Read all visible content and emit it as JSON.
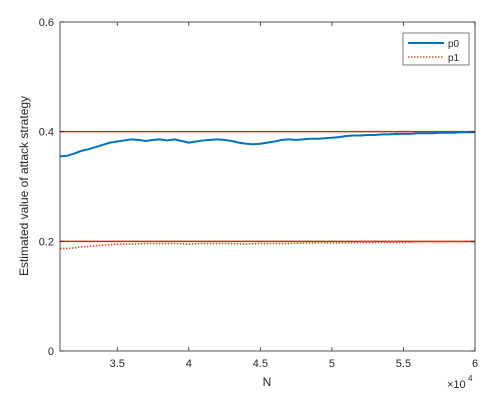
{
  "chart_data": {
    "type": "line",
    "title": "",
    "xlabel": "N",
    "ylabel": "Estimated value of attack strategy",
    "x_exponent_label": "×10",
    "x_exponent_power": "4",
    "xlim": [
      31000,
      60000
    ],
    "ylim": [
      0,
      0.6
    ],
    "x_ticks": [
      35000,
      40000,
      45000,
      50000,
      55000,
      60000
    ],
    "x_tick_labels": [
      "3.5",
      "4",
      "4.5",
      "5",
      "5.5",
      "6"
    ],
    "y_ticks": [
      0,
      0.2,
      0.4,
      0.6
    ],
    "y_tick_labels": [
      "0",
      "0.2",
      "0.4",
      "0.6"
    ],
    "grid": false,
    "legend_position": "top-right",
    "series": [
      {
        "name": "p0",
        "color": "#0072BD",
        "style": "solid",
        "x": [
          31000,
          31500,
          32000,
          32500,
          33000,
          33500,
          34000,
          34500,
          35000,
          35500,
          36000,
          36500,
          37000,
          37500,
          38000,
          38500,
          39000,
          39500,
          40000,
          40500,
          41000,
          41500,
          42000,
          42500,
          43000,
          43500,
          44000,
          44500,
          45000,
          45500,
          46000,
          46500,
          47000,
          47500,
          48000,
          48500,
          49000,
          49500,
          50000,
          50500,
          51000,
          51500,
          52000,
          52500,
          53000,
          53500,
          54000,
          54500,
          55000,
          55500,
          56000,
          56500,
          57000,
          57500,
          58000,
          58500,
          59000,
          59500,
          60000
        ],
        "values": [
          0.355,
          0.356,
          0.36,
          0.365,
          0.368,
          0.372,
          0.376,
          0.38,
          0.382,
          0.384,
          0.386,
          0.385,
          0.383,
          0.385,
          0.386,
          0.384,
          0.386,
          0.383,
          0.38,
          0.382,
          0.384,
          0.385,
          0.386,
          0.385,
          0.383,
          0.38,
          0.378,
          0.377,
          0.378,
          0.38,
          0.382,
          0.385,
          0.386,
          0.385,
          0.386,
          0.387,
          0.387,
          0.388,
          0.389,
          0.39,
          0.392,
          0.393,
          0.393,
          0.394,
          0.394,
          0.395,
          0.395,
          0.396,
          0.396,
          0.396,
          0.397,
          0.397,
          0.397,
          0.398,
          0.398,
          0.398,
          0.399,
          0.399,
          0.399
        ]
      },
      {
        "name": "p1",
        "color": "#D95319",
        "style": "dotted",
        "x": [
          31000,
          31500,
          32000,
          32500,
          33000,
          33500,
          34000,
          34500,
          35000,
          36000,
          37000,
          38000,
          39000,
          40000,
          41000,
          42000,
          43000,
          44000,
          45000,
          46000,
          47000,
          48000,
          49000,
          50000,
          51000,
          52000,
          53000,
          54000,
          55000,
          56000,
          57000,
          58000,
          59000,
          60000
        ],
        "values": [
          0.187,
          0.187,
          0.188,
          0.19,
          0.191,
          0.192,
          0.193,
          0.194,
          0.195,
          0.195,
          0.196,
          0.196,
          0.196,
          0.195,
          0.196,
          0.196,
          0.196,
          0.195,
          0.196,
          0.196,
          0.196,
          0.197,
          0.197,
          0.197,
          0.197,
          0.198,
          0.198,
          0.198,
          0.198,
          0.199,
          0.199,
          0.199,
          0.199,
          0.199
        ]
      }
    ],
    "reference_lines": [
      {
        "y": 0.4,
        "color": "#E02020"
      },
      {
        "y": 0.2,
        "color": "#E02020"
      }
    ]
  }
}
